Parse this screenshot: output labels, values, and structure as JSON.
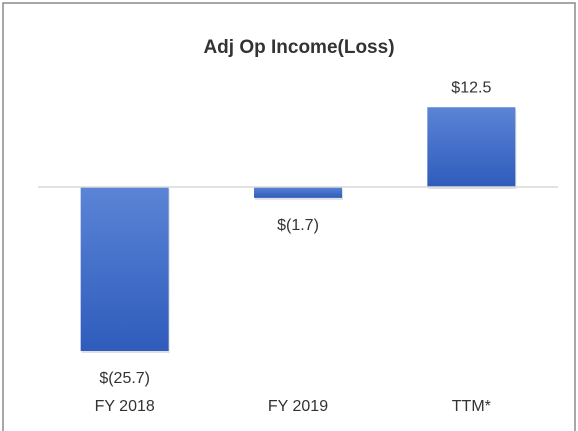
{
  "chart_data": {
    "type": "bar",
    "title": "Adj Op Income(Loss)",
    "categories": [
      "FY 2018",
      "FY 2019",
      "TTM*"
    ],
    "values": [
      -25.7,
      -1.7,
      12.5
    ],
    "value_labels": [
      "$(25.7)",
      "$(1.7)",
      "$12.5"
    ],
    "color": "#3a66c4"
  }
}
